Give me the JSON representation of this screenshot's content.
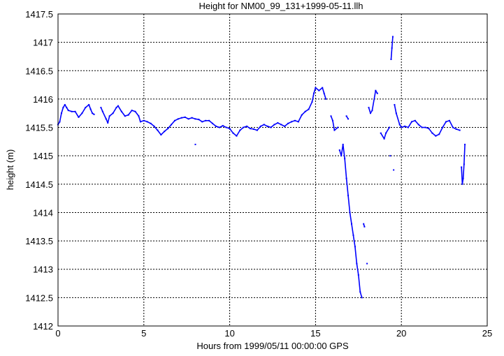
{
  "chart_data": {
    "type": "scatter",
    "title": "Height for NM00_99_131+1999-05-11.llh",
    "xlabel": "Hours from 1999/05/11 00:00:00 GPS",
    "ylabel": "height (m)",
    "xlim": [
      0,
      25
    ],
    "ylim": [
      1412,
      1417.5
    ],
    "xticks": [
      "0",
      "5",
      "10",
      "15",
      "20",
      "25"
    ],
    "yticks": [
      "1412",
      "1412.5",
      "1413",
      "1413.5",
      "1414",
      "1414.5",
      "1415",
      "1415.5",
      "1416",
      "1416.5",
      "1417",
      "1417.5"
    ],
    "grid": true,
    "color": "#0000ff",
    "series": [
      {
        "name": "height",
        "points": [
          [
            0.0,
            1415.55
          ],
          [
            0.1,
            1415.6
          ],
          [
            0.2,
            1415.75
          ],
          [
            0.3,
            1415.85
          ],
          [
            0.4,
            1415.9
          ],
          [
            0.5,
            1415.85
          ],
          [
            0.6,
            1415.8
          ],
          [
            0.8,
            1415.78
          ],
          [
            1.0,
            1415.78
          ],
          [
            1.2,
            1415.68
          ],
          [
            1.4,
            1415.75
          ],
          [
            1.6,
            1415.85
          ],
          [
            1.8,
            1415.9
          ],
          [
            1.9,
            1415.82
          ],
          [
            2.0,
            1415.75
          ],
          [
            2.1,
            1415.73
          ],
          [
            2.5,
            1415.85
          ],
          [
            2.6,
            1415.78
          ],
          [
            2.8,
            1415.65
          ],
          [
            2.9,
            1415.58
          ],
          [
            3.0,
            1415.7
          ],
          [
            3.2,
            1415.75
          ],
          [
            3.4,
            1415.85
          ],
          [
            3.5,
            1415.88
          ],
          [
            3.7,
            1415.78
          ],
          [
            3.9,
            1415.7
          ],
          [
            4.1,
            1415.72
          ],
          [
            4.3,
            1415.8
          ],
          [
            4.5,
            1415.78
          ],
          [
            4.7,
            1415.7
          ],
          [
            4.8,
            1415.6
          ],
          [
            5.0,
            1415.62
          ],
          [
            5.2,
            1415.6
          ],
          [
            5.4,
            1415.57
          ],
          [
            5.6,
            1415.52
          ],
          [
            5.8,
            1415.45
          ],
          [
            6.0,
            1415.37
          ],
          [
            6.2,
            1415.43
          ],
          [
            6.4,
            1415.48
          ],
          [
            6.6,
            1415.55
          ],
          [
            6.8,
            1415.62
          ],
          [
            7.0,
            1415.65
          ],
          [
            7.2,
            1415.67
          ],
          [
            7.4,
            1415.68
          ],
          [
            7.6,
            1415.65
          ],
          [
            7.8,
            1415.67
          ],
          [
            8.0,
            1415.65
          ],
          [
            8.2,
            1415.64
          ],
          [
            8.4,
            1415.6
          ],
          [
            8.6,
            1415.62
          ],
          [
            8.8,
            1415.62
          ],
          [
            9.0,
            1415.57
          ],
          [
            9.2,
            1415.52
          ],
          [
            9.4,
            1415.5
          ],
          [
            9.6,
            1415.53
          ],
          [
            9.8,
            1415.5
          ],
          [
            10.0,
            1415.48
          ],
          [
            10.2,
            1415.4
          ],
          [
            10.4,
            1415.35
          ],
          [
            10.6,
            1415.45
          ],
          [
            10.8,
            1415.5
          ],
          [
            11.0,
            1415.52
          ],
          [
            11.2,
            1415.48
          ],
          [
            11.4,
            1415.47
          ],
          [
            11.6,
            1415.45
          ],
          [
            11.8,
            1415.52
          ],
          [
            12.0,
            1415.55
          ],
          [
            12.2,
            1415.52
          ],
          [
            12.4,
            1415.5
          ],
          [
            12.6,
            1415.55
          ],
          [
            12.8,
            1415.58
          ],
          [
            13.0,
            1415.55
          ],
          [
            13.2,
            1415.52
          ],
          [
            13.4,
            1415.57
          ],
          [
            13.6,
            1415.6
          ],
          [
            13.8,
            1415.62
          ],
          [
            14.0,
            1415.6
          ],
          [
            14.2,
            1415.72
          ],
          [
            14.4,
            1415.78
          ],
          [
            14.6,
            1415.82
          ],
          [
            14.8,
            1415.95
          ],
          [
            14.9,
            1416.1
          ],
          [
            15.0,
            1416.2
          ],
          [
            15.2,
            1416.15
          ],
          [
            15.4,
            1416.2
          ],
          [
            15.5,
            1416.1
          ],
          [
            15.6,
            1416.0
          ],
          [
            8.0,
            1415.2
          ],
          [
            15.9,
            1415.7
          ],
          [
            16.0,
            1415.62
          ],
          [
            16.1,
            1415.45
          ],
          [
            16.3,
            1415.5
          ],
          [
            16.4,
            1415.1
          ],
          [
            16.5,
            1415.0
          ],
          [
            16.6,
            1415.2
          ],
          [
            16.7,
            1414.95
          ],
          [
            16.8,
            1414.6
          ],
          [
            16.9,
            1414.3
          ],
          [
            17.0,
            1414.0
          ],
          [
            17.1,
            1413.8
          ],
          [
            17.2,
            1413.6
          ],
          [
            17.3,
            1413.4
          ],
          [
            17.4,
            1413.1
          ],
          [
            17.5,
            1412.9
          ],
          [
            17.6,
            1412.6
          ],
          [
            17.7,
            1412.5
          ],
          [
            16.8,
            1415.7
          ],
          [
            16.9,
            1415.65
          ],
          [
            17.8,
            1413.8
          ],
          [
            17.85,
            1413.75
          ],
          [
            18.0,
            1413.1
          ],
          [
            18.1,
            1415.85
          ],
          [
            18.2,
            1415.75
          ],
          [
            18.3,
            1415.8
          ],
          [
            18.5,
            1416.15
          ],
          [
            18.6,
            1416.1
          ],
          [
            18.8,
            1415.4
          ],
          [
            19.0,
            1415.3
          ],
          [
            19.1,
            1415.4
          ],
          [
            19.3,
            1415.5
          ],
          [
            19.35,
            1415.0
          ],
          [
            19.4,
            1416.7
          ],
          [
            19.45,
            1416.9
          ],
          [
            19.5,
            1417.1
          ],
          [
            19.55,
            1414.75
          ],
          [
            19.6,
            1415.9
          ],
          [
            19.7,
            1415.75
          ],
          [
            19.9,
            1415.55
          ],
          [
            20.0,
            1415.5
          ],
          [
            20.2,
            1415.52
          ],
          [
            20.4,
            1415.5
          ],
          [
            20.6,
            1415.6
          ],
          [
            20.8,
            1415.62
          ],
          [
            21.0,
            1415.55
          ],
          [
            21.2,
            1415.5
          ],
          [
            21.4,
            1415.5
          ],
          [
            21.6,
            1415.48
          ],
          [
            21.8,
            1415.4
          ],
          [
            22.0,
            1415.35
          ],
          [
            22.2,
            1415.38
          ],
          [
            22.4,
            1415.5
          ],
          [
            22.6,
            1415.6
          ],
          [
            22.8,
            1415.62
          ],
          [
            23.0,
            1415.5
          ],
          [
            23.2,
            1415.47
          ],
          [
            23.4,
            1415.45
          ],
          [
            23.5,
            1414.8
          ],
          [
            23.55,
            1414.5
          ],
          [
            23.6,
            1414.6
          ],
          [
            23.65,
            1414.85
          ],
          [
            23.7,
            1415.2
          ]
        ]
      }
    ]
  }
}
